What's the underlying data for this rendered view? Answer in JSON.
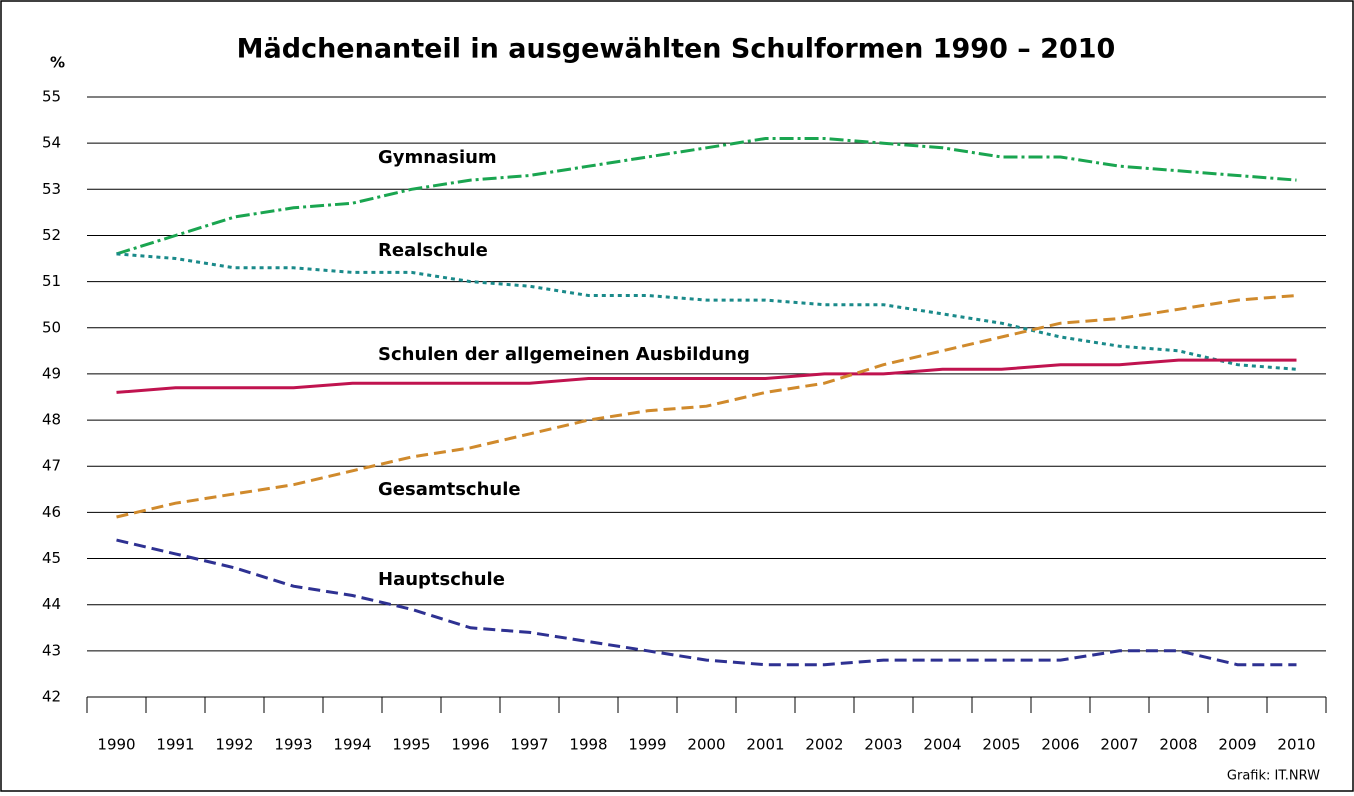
{
  "chart_data": {
    "type": "line",
    "title": "Mädchenanteil in ausgewählten Schulformen 1990 – 2010",
    "y_label": "%",
    "source": "Grafik: IT.NRW",
    "categories": [
      "1990",
      "1991",
      "1992",
      "1993",
      "1994",
      "1995",
      "1996",
      "1997",
      "1998",
      "1999",
      "2000",
      "2001",
      "2002",
      "2003",
      "2004",
      "2005",
      "2006",
      "2007",
      "2008",
      "2009",
      "2010"
    ],
    "ylim": [
      42,
      55
    ],
    "yticks": [
      42,
      43,
      44,
      45,
      46,
      47,
      48,
      49,
      50,
      51,
      52,
      53,
      54,
      55
    ],
    "grid": true,
    "series": [
      {
        "name": "Gymnasium",
        "color": "#1aa550",
        "dash": "dashdot",
        "values": [
          51.6,
          52.0,
          52.4,
          52.6,
          52.7,
          53.0,
          53.2,
          53.3,
          53.5,
          53.7,
          53.9,
          54.1,
          54.1,
          54.0,
          53.9,
          53.7,
          53.7,
          53.5,
          53.4,
          53.3,
          53.2
        ]
      },
      {
        "name": "Realschule",
        "color": "#1a8a8a",
        "dash": "dotted",
        "values": [
          51.6,
          51.5,
          51.3,
          51.3,
          51.2,
          51.2,
          51.0,
          50.9,
          50.7,
          50.7,
          50.6,
          50.6,
          50.5,
          50.5,
          50.3,
          50.1,
          49.8,
          49.6,
          49.5,
          49.2,
          49.1
        ]
      },
      {
        "name": "Schulen der allgemeinen Ausbildung",
        "color": "#c0134f",
        "dash": "solid",
        "values": [
          48.6,
          48.7,
          48.7,
          48.7,
          48.8,
          48.8,
          48.8,
          48.8,
          48.9,
          48.9,
          48.9,
          48.9,
          49.0,
          49.0,
          49.1,
          49.1,
          49.2,
          49.2,
          49.3,
          49.3,
          49.3
        ]
      },
      {
        "name": "Gesamtschule",
        "color": "#d08a2c",
        "dash": "dashed",
        "values": [
          45.9,
          46.2,
          46.4,
          46.6,
          46.9,
          47.2,
          47.4,
          47.7,
          48.0,
          48.2,
          48.3,
          48.6,
          48.8,
          49.2,
          49.5,
          49.8,
          50.1,
          50.2,
          50.4,
          50.6,
          50.7
        ]
      },
      {
        "name": "Hauptschule",
        "color": "#2e3192",
        "dash": "dashed",
        "values": [
          45.4,
          45.1,
          44.8,
          44.4,
          44.2,
          43.9,
          43.5,
          43.4,
          43.2,
          43.0,
          42.8,
          42.7,
          42.7,
          42.8,
          42.8,
          42.8,
          42.8,
          43.0,
          43.0,
          42.7,
          42.7
        ]
      }
    ]
  }
}
